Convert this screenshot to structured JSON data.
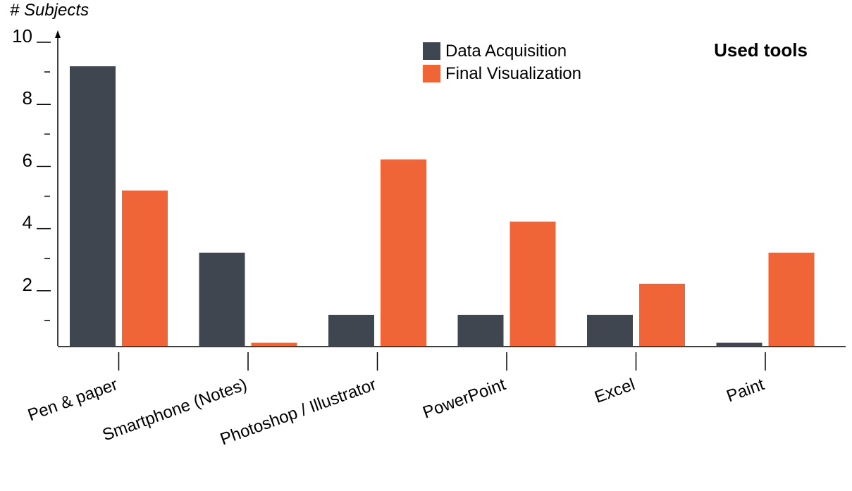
{
  "chart_data": {
    "type": "bar",
    "title": "Used tools",
    "ylabel": "# Subjects",
    "xlabel": "",
    "ylim": [
      0,
      10
    ],
    "yticks_labeled": [
      2,
      4,
      6,
      8,
      10
    ],
    "yticks_minor": [
      1,
      3,
      5,
      7,
      9
    ],
    "categories": [
      "Pen & paper",
      "Smartphone (Notes)",
      "Photoshop / Illustrator",
      "PowerPoint",
      "Excel",
      "Paint"
    ],
    "series": [
      {
        "name": "Data Acquisition",
        "values": [
          9,
          3,
          1,
          1,
          1,
          0.1
        ]
      },
      {
        "name": "Final Visualization",
        "values": [
          5,
          0.1,
          6,
          4,
          2,
          3
        ]
      }
    ],
    "legend_position": "top-center",
    "grid": false
  },
  "colors": {
    "data_acquisition": "#3f4650",
    "final_visualization": "#f06537",
    "axis": "#000000",
    "text": "#000000"
  }
}
